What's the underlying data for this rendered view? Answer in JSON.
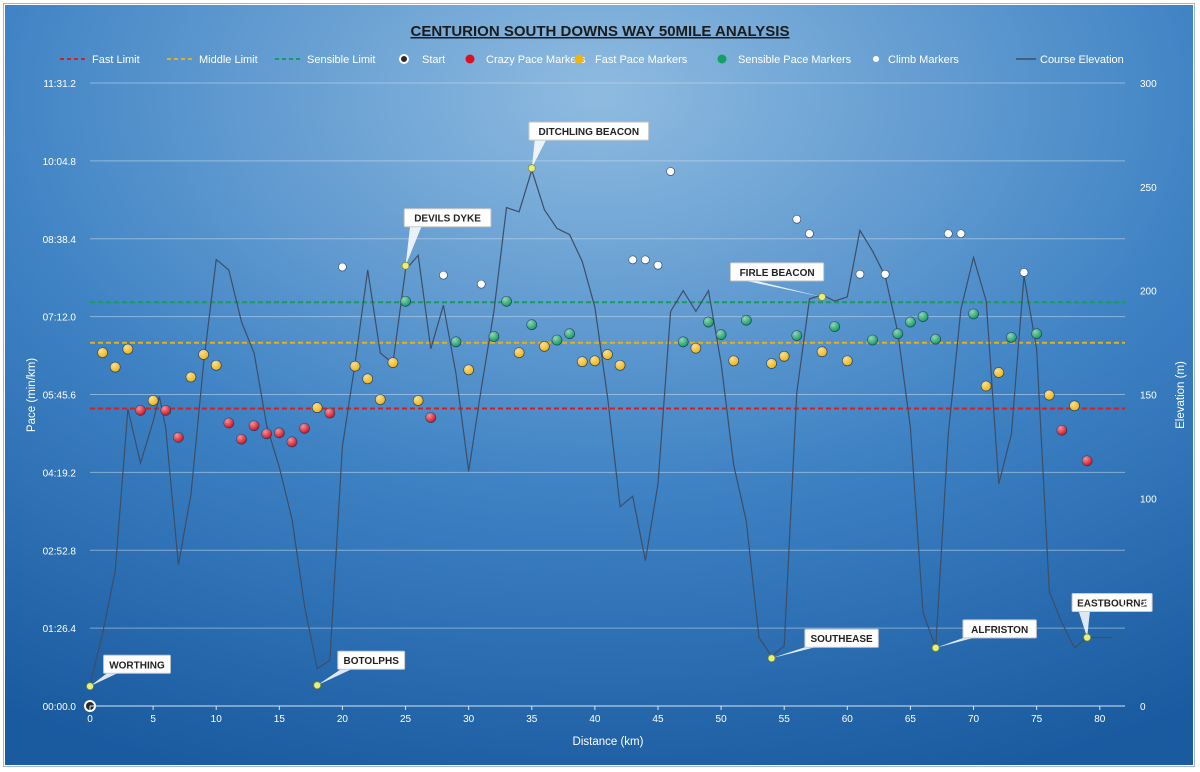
{
  "chart_data": {
    "type": "scatter",
    "title": "CENTURION SOUTH DOWNS WAY 50MILE ANALYSIS",
    "xlabel": "Distance (km)",
    "ylabel": "Pace (min/km)",
    "y2label": "Elevation (m)",
    "xlim": [
      0,
      82
    ],
    "ylim_seconds": [
      0,
      691.2
    ],
    "y2lim": [
      0,
      300
    ],
    "x_ticks": [
      0,
      5,
      10,
      15,
      20,
      25,
      30,
      35,
      40,
      45,
      50,
      55,
      60,
      65,
      70,
      75,
      80
    ],
    "y_ticks": [
      {
        "v": 0,
        "label": "00:00.0"
      },
      {
        "v": 86.4,
        "label": "01:26.4"
      },
      {
        "v": 172.8,
        "label": "02:52.8"
      },
      {
        "v": 259.2,
        "label": "04:19.2"
      },
      {
        "v": 345.6,
        "label": "05:45.6"
      },
      {
        "v": 432,
        "label": "07:12.0"
      },
      {
        "v": 518.4,
        "label": "08:38.4"
      },
      {
        "v": 604.8,
        "label": "10:04.8"
      },
      {
        "v": 691.2,
        "label": "11:31.2"
      }
    ],
    "y2_ticks": [
      0,
      50,
      100,
      150,
      200,
      250,
      300
    ],
    "grid": "horizontal",
    "legend_position": "top",
    "legend": [
      {
        "key": "fast_limit",
        "label": "Fast Limit",
        "kind": "dash",
        "color": "#d62020"
      },
      {
        "key": "middle_limit",
        "label": "Middle Limit",
        "kind": "dash",
        "color": "#e0b020"
      },
      {
        "key": "sensible_limit",
        "label": "Sensible Limit",
        "kind": "dash",
        "color": "#1a9a60"
      },
      {
        "key": "start",
        "label": "Start",
        "kind": "ring",
        "color": "#ffffff"
      },
      {
        "key": "crazy",
        "label": "Crazy Pace Markers",
        "kind": "dot",
        "color": "#dd1020"
      },
      {
        "key": "fast",
        "label": "Fast Pace Markers",
        "kind": "dot",
        "color": "#f2b510"
      },
      {
        "key": "sensible",
        "label": "Sensible Pace Markers",
        "kind": "dot",
        "color": "#13a060"
      },
      {
        "key": "climb",
        "label": "Climb Markers",
        "kind": "smalldot",
        "color": "#ffffff"
      },
      {
        "key": "elevation",
        "label": "Course Elevation",
        "kind": "line",
        "color": "#3d4e68"
      }
    ],
    "limits": {
      "fast": 330,
      "middle": 403,
      "sensible": 448
    },
    "series": {
      "start": [
        [
          0,
          0
        ]
      ],
      "crazy": [
        [
          4,
          328
        ],
        [
          6,
          328
        ],
        [
          7,
          298
        ],
        [
          11,
          314
        ],
        [
          12,
          296
        ],
        [
          13,
          311
        ],
        [
          14,
          302
        ],
        [
          15,
          303
        ],
        [
          16,
          293
        ],
        [
          17,
          308
        ],
        [
          19,
          325
        ],
        [
          27,
          320
        ],
        [
          77,
          306
        ],
        [
          79,
          272
        ]
      ],
      "fast": [
        [
          1,
          392
        ],
        [
          2,
          376
        ],
        [
          3,
          396
        ],
        [
          5,
          339
        ],
        [
          8,
          365
        ],
        [
          9,
          390
        ],
        [
          10,
          378
        ],
        [
          18,
          331
        ],
        [
          21,
          377
        ],
        [
          22,
          363
        ],
        [
          23,
          340
        ],
        [
          24,
          381
        ],
        [
          26,
          339
        ],
        [
          30,
          373
        ],
        [
          34,
          392
        ],
        [
          36,
          399
        ],
        [
          39,
          382
        ],
        [
          40,
          383
        ],
        [
          41,
          390
        ],
        [
          42,
          378
        ],
        [
          48,
          397
        ],
        [
          51,
          383
        ],
        [
          54,
          380
        ],
        [
          55,
          388
        ],
        [
          58,
          393
        ],
        [
          60,
          383
        ],
        [
          71,
          355
        ],
        [
          72,
          370
        ],
        [
          76,
          345
        ],
        [
          78,
          333
        ]
      ],
      "sensible": [
        [
          25,
          449
        ],
        [
          29,
          404
        ],
        [
          32,
          410
        ],
        [
          33,
          449
        ],
        [
          35,
          423
        ],
        [
          37,
          406
        ],
        [
          38,
          413
        ],
        [
          47,
          404
        ],
        [
          49,
          426
        ],
        [
          50,
          412
        ],
        [
          52,
          428
        ],
        [
          56,
          411
        ],
        [
          59,
          421
        ],
        [
          62,
          406
        ],
        [
          64,
          413
        ],
        [
          65,
          426
        ],
        [
          66,
          432
        ],
        [
          67,
          407
        ],
        [
          70,
          435
        ],
        [
          73,
          409
        ],
        [
          75,
          413
        ]
      ],
      "climb": [
        [
          20,
          487
        ],
        [
          28,
          478
        ],
        [
          31,
          468
        ],
        [
          43,
          495
        ],
        [
          44,
          495
        ],
        [
          45,
          489
        ],
        [
          46,
          593
        ],
        [
          56,
          540
        ],
        [
          57,
          524
        ],
        [
          61,
          479
        ],
        [
          63,
          479
        ],
        [
          68,
          524
        ],
        [
          69,
          524
        ],
        [
          74,
          481
        ]
      ],
      "elevation": [
        [
          0,
          10
        ],
        [
          1,
          35
        ],
        [
          2,
          65
        ],
        [
          3,
          143
        ],
        [
          4,
          117
        ],
        [
          5,
          137
        ],
        [
          5.5,
          149
        ],
        [
          6,
          134
        ],
        [
          7,
          68
        ],
        [
          8,
          102
        ],
        [
          9,
          165
        ],
        [
          10,
          215
        ],
        [
          11,
          210
        ],
        [
          12,
          185
        ],
        [
          13,
          170
        ],
        [
          14,
          135
        ],
        [
          15,
          115
        ],
        [
          16,
          90
        ],
        [
          17,
          48
        ],
        [
          18,
          18
        ],
        [
          19,
          22
        ],
        [
          20,
          125
        ],
        [
          21,
          165
        ],
        [
          22,
          210
        ],
        [
          23,
          170
        ],
        [
          24,
          165
        ],
        [
          25,
          210
        ],
        [
          26,
          217
        ],
        [
          27,
          172
        ],
        [
          28,
          193
        ],
        [
          29,
          160
        ],
        [
          30,
          113
        ],
        [
          31,
          153
        ],
        [
          32,
          190
        ],
        [
          33,
          240
        ],
        [
          34,
          238
        ],
        [
          35,
          258
        ],
        [
          36,
          239
        ],
        [
          37,
          230
        ],
        [
          38,
          227
        ],
        [
          39,
          214
        ],
        [
          40,
          192
        ],
        [
          41,
          149
        ],
        [
          42,
          96
        ],
        [
          43,
          101
        ],
        [
          44,
          70
        ],
        [
          45,
          107
        ],
        [
          46,
          190
        ],
        [
          47,
          200
        ],
        [
          48,
          190
        ],
        [
          49,
          200
        ],
        [
          50,
          165
        ],
        [
          51,
          116
        ],
        [
          52,
          89
        ],
        [
          53,
          33
        ],
        [
          54,
          24
        ],
        [
          55,
          29
        ],
        [
          56,
          151
        ],
        [
          57,
          196
        ],
        [
          58,
          198
        ],
        [
          59,
          195
        ],
        [
          60,
          197
        ],
        [
          61,
          229
        ],
        [
          62,
          219
        ],
        [
          63,
          207
        ],
        [
          64,
          180
        ],
        [
          65,
          134
        ],
        [
          66,
          45
        ],
        [
          67,
          28
        ],
        [
          68,
          131
        ],
        [
          69,
          191
        ],
        [
          70,
          216
        ],
        [
          71,
          195
        ],
        [
          72,
          107
        ],
        [
          73,
          131
        ],
        [
          74,
          207
        ],
        [
          75,
          172
        ],
        [
          76,
          55
        ],
        [
          77,
          40
        ],
        [
          78,
          28
        ],
        [
          79,
          33
        ],
        [
          80,
          33
        ],
        [
          81,
          33
        ]
      ],
      "landmarks": [
        {
          "name": "WORTHING",
          "x": 0,
          "pace": 9.5
        },
        {
          "name": "BOTOLPHS",
          "x": 18,
          "pace": 10
        },
        {
          "name": "DEVILS DYKE",
          "x": 25,
          "pace": 212
        },
        {
          "name": "DITCHLING BEACON",
          "x": 35,
          "pace": 259
        },
        {
          "name": "SOUTHEASE",
          "x": 54,
          "pace": 23
        },
        {
          "name": "FIRLE BEACON",
          "x": 58,
          "pace": 197
        },
        {
          "name": "ALFRISTON",
          "x": 67,
          "pace": 28
        },
        {
          "name": "EASTBOURNE",
          "x": 79,
          "pace": 33
        }
      ]
    }
  },
  "colors": {
    "bg_light": "#8fbbe0",
    "bg_dark": "#1d5ea3",
    "text": "#ffffff",
    "title_text": "#1b1b1b",
    "landmark_dot": "#e8f07a"
  },
  "stray_marker": "0"
}
